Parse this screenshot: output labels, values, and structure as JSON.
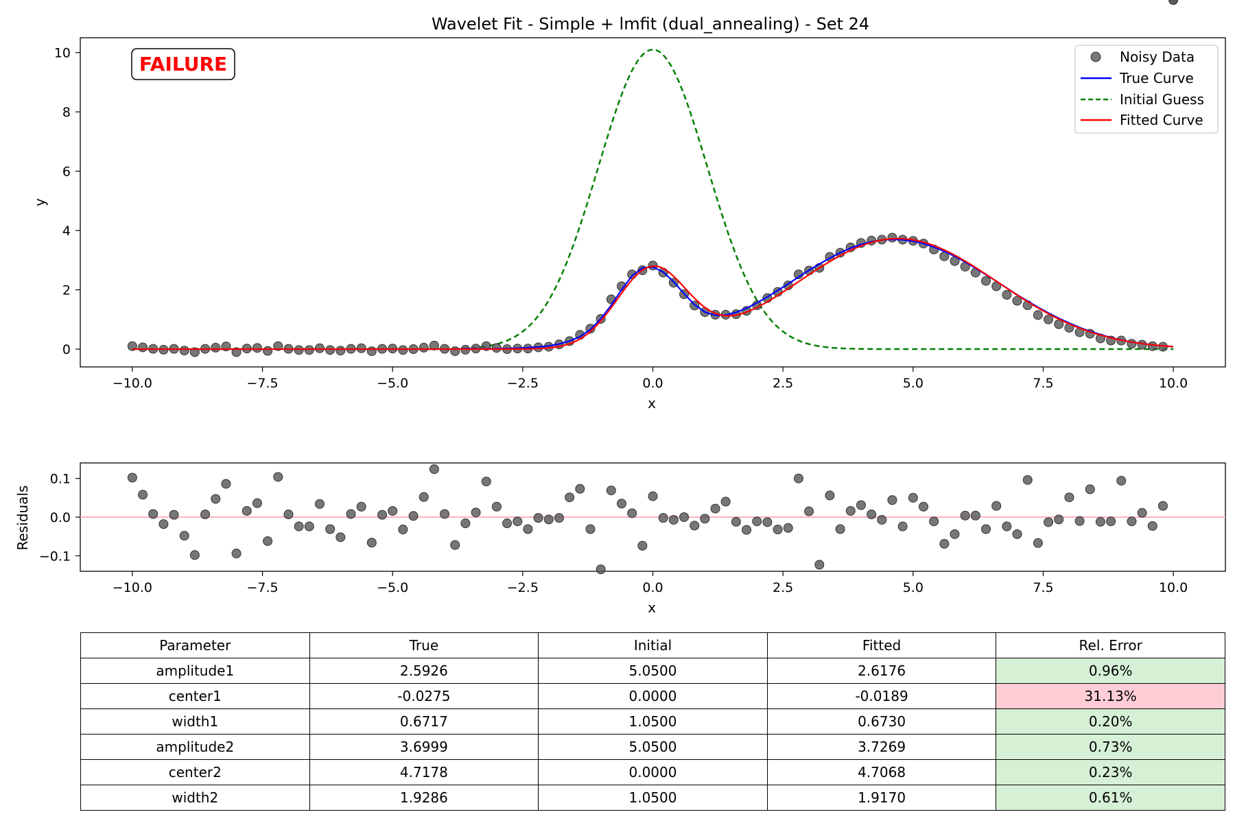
{
  "chart_data": [
    {
      "type": "line",
      "title": "Wavelet Fit - Simple + lmfit (dual_annealing) - Set 24",
      "xlabel": "x",
      "ylabel": "y",
      "xlim": [
        -11,
        11
      ],
      "ylim": [
        -0.6,
        10.5
      ],
      "xticks": [
        -10,
        -7.5,
        -5,
        -2.5,
        0,
        2.5,
        5,
        7.5,
        10
      ],
      "xtick_labels": [
        "−10.0",
        "−7.5",
        "−5.0",
        "−2.5",
        "0.0",
        "2.5",
        "5.0",
        "7.5",
        "10.0"
      ],
      "yticks": [
        0,
        2,
        4,
        6,
        8,
        10
      ],
      "ytick_labels": [
        "0",
        "2",
        "4",
        "6",
        "8",
        "10"
      ],
      "grid": false,
      "legend_position": "top-right",
      "annotation": "FAILURE",
      "series": [
        {
          "name": "Noisy Data",
          "kind": "scatter",
          "color": "#555555"
        },
        {
          "name": "True Curve",
          "kind": "line",
          "color": "#0000ff"
        },
        {
          "name": "Initial Guess",
          "kind": "dashed-line",
          "color": "#008000"
        },
        {
          "name": "Fitted Curve",
          "kind": "line",
          "color": "#ff0000"
        }
      ],
      "x": [
        -10.0,
        -9.8,
        -9.6,
        -9.4,
        -9.2,
        -9.0,
        -8.8,
        -8.6,
        -8.4,
        -8.2,
        -8.0,
        -7.8,
        -7.6,
        -7.4,
        -7.2,
        -7.0,
        -6.8,
        -6.6,
        -6.4,
        -6.2,
        -6.0,
        -5.8,
        -5.6,
        -5.4,
        -5.2,
        -5.0,
        -4.8,
        -4.6,
        -4.4,
        -4.2,
        -4.0,
        -3.8,
        -3.6,
        -3.4,
        -3.2,
        -3.0,
        -2.8,
        -2.6,
        -2.4,
        -2.2,
        -2.0,
        -1.8,
        -1.6,
        -1.4,
        -1.2,
        -1.0,
        -0.8,
        -0.6,
        -0.4,
        -0.2,
        0.0,
        0.2,
        0.4,
        0.6,
        0.8,
        1.0,
        1.2,
        1.4,
        1.6,
        1.8,
        2.0,
        2.2,
        2.4,
        2.6,
        2.8,
        3.0,
        3.2,
        3.4,
        3.6,
        3.8,
        4.0,
        4.2,
        4.4,
        4.6,
        4.8,
        5.0,
        5.2,
        5.4,
        5.6,
        5.8,
        6.0,
        6.2,
        6.4,
        6.6,
        6.8,
        7.0,
        7.2,
        7.4,
        7.6,
        7.8,
        8.0,
        8.2,
        8.4,
        8.6,
        8.8,
        9.0,
        9.2,
        9.4,
        9.6,
        9.8,
        10.0
      ],
      "noisy_y": [
        0.1,
        0.06,
        0.01,
        -0.02,
        0.01,
        -0.05,
        -0.1,
        0.01,
        0.05,
        0.09,
        -0.1,
        0.02,
        0.04,
        -0.06,
        0.1,
        0.01,
        -0.03,
        -0.03,
        0.03,
        -0.03,
        -0.05,
        0.01,
        0.03,
        -0.07,
        0.01,
        0.02,
        -0.03,
        0.0,
        0.05,
        0.12,
        0.01,
        -0.07,
        -0.02,
        0.02,
        0.1,
        0.04,
        0.0,
        0.02,
        0.02,
        0.06,
        0.08,
        0.16,
        0.27,
        0.48,
        0.69,
        1.02,
        1.68,
        2.12,
        2.52,
        2.66,
        2.82,
        2.58,
        2.24,
        1.85,
        1.47,
        1.25,
        1.16,
        1.16,
        1.18,
        1.29,
        1.48,
        1.72,
        1.93,
        2.15,
        2.52,
        2.65,
        2.74,
        3.11,
        3.25,
        3.43,
        3.58,
        3.66,
        3.69,
        3.76,
        3.69,
        3.65,
        3.56,
        3.36,
        3.13,
        2.97,
        2.78,
        2.58,
        2.3,
        2.12,
        1.83,
        1.63,
        1.48,
        1.15,
        1.0,
        0.84,
        0.72,
        0.57,
        0.52,
        0.36,
        0.29,
        0.29,
        0.18,
        0.15,
        0.1,
        0.08
      ],
      "true_y": [
        0.0,
        0.0,
        0.0,
        0.0,
        0.0,
        0.0,
        0.0,
        0.0,
        0.0,
        0.0,
        0.0,
        0.0,
        0.0,
        0.0,
        0.0,
        0.0,
        0.0,
        0.0,
        0.0,
        0.0,
        0.0,
        0.0,
        0.0,
        0.0,
        0.0,
        0.0,
        0.0,
        0.0,
        0.0,
        0.0,
        0.0,
        0.0,
        0.01,
        0.01,
        0.01,
        0.01,
        0.02,
        0.03,
        0.05,
        0.07,
        0.11,
        0.17,
        0.27,
        0.42,
        0.66,
        1.02,
        1.48,
        2.0,
        2.47,
        2.74,
        2.77,
        2.6,
        2.27,
        1.87,
        1.5,
        1.25,
        1.14,
        1.15,
        1.24,
        1.38,
        1.56,
        1.76,
        1.98,
        2.2,
        2.43,
        2.66,
        2.87,
        3.07,
        3.25,
        3.41,
        3.53,
        3.62,
        3.68,
        3.7,
        3.69,
        3.64,
        3.56,
        3.44,
        3.3,
        3.13,
        2.94,
        2.73,
        2.51,
        2.29,
        2.06,
        1.83,
        1.62,
        1.41,
        1.22,
        1.04,
        0.88,
        0.73,
        0.6,
        0.49,
        0.39,
        0.31,
        0.24,
        0.19,
        0.14,
        0.11,
        0.08
      ],
      "initial_amplitude_peak": 10.1
    },
    {
      "type": "scatter",
      "title": "",
      "xlabel": "x",
      "ylabel": "Residuals",
      "xlim": [
        -11,
        11
      ],
      "ylim": [
        -0.14,
        0.14
      ],
      "xticks": [
        -10,
        -7.5,
        -5,
        -2.5,
        0,
        2.5,
        5,
        7.5,
        10
      ],
      "xtick_labels": [
        "−10.0",
        "−7.5",
        "−5.0",
        "−2.5",
        "0.0",
        "2.5",
        "5.0",
        "7.5",
        "10.0"
      ],
      "yticks": [
        -0.1,
        0.0,
        0.1
      ],
      "ytick_labels": [
        "−0.1",
        "0.0",
        "0.1"
      ],
      "grid": false,
      "zero_line_color": "#ffb3ba",
      "x": [
        -10.0,
        -9.8,
        -9.6,
        -9.4,
        -9.2,
        -9.0,
        -8.8,
        -8.6,
        -8.4,
        -8.2,
        -8.0,
        -7.8,
        -7.6,
        -7.4,
        -7.2,
        -7.0,
        -6.8,
        -6.6,
        -6.4,
        -6.2,
        -6.0,
        -5.8,
        -5.6,
        -5.4,
        -5.2,
        -5.0,
        -4.8,
        -4.6,
        -4.4,
        -4.2,
        -4.0,
        -3.8,
        -3.6,
        -3.4,
        -3.2,
        -3.0,
        -2.8,
        -2.6,
        -2.4,
        -2.2,
        -2.0,
        -1.8,
        -1.6,
        -1.4,
        -1.2,
        -1.0,
        -0.8,
        -0.6,
        -0.4,
        -0.2,
        0.0,
        0.2,
        0.4,
        0.6,
        0.8,
        1.0,
        1.2,
        1.4,
        1.6,
        1.8,
        2.0,
        2.2,
        2.4,
        2.6,
        2.8,
        3.0,
        3.2,
        3.4,
        3.6,
        3.8,
        4.0,
        4.2,
        4.4,
        4.6,
        4.8,
        5.0,
        5.2,
        5.4,
        5.6,
        5.8,
        6.0,
        6.2,
        6.4,
        6.6,
        6.8,
        7.0,
        7.2,
        7.4,
        7.6,
        7.8,
        8.0,
        8.2,
        8.4,
        8.6,
        8.8,
        9.0,
        9.2,
        9.4,
        9.6,
        9.8,
        10.0
      ],
      "residuals": [
        0.102,
        0.058,
        0.008,
        -0.018,
        0.006,
        -0.048,
        -0.098,
        0.007,
        0.047,
        0.086,
        -0.094,
        0.016,
        0.036,
        -0.062,
        0.104,
        0.007,
        -0.024,
        -0.024,
        0.034,
        -0.031,
        -0.052,
        0.008,
        0.027,
        -0.066,
        0.006,
        0.016,
        -0.032,
        0.003,
        0.052,
        0.124,
        0.008,
        -0.072,
        -0.016,
        0.012,
        0.092,
        0.027,
        -0.016,
        -0.011,
        -0.031,
        -0.002,
        -0.006,
        -0.002,
        0.051,
        0.073,
        -0.031,
        -0.135,
        0.069,
        0.035,
        0.01,
        -0.074,
        0.054,
        -0.002,
        -0.007,
        0.0,
        -0.022,
        -0.004,
        0.022,
        0.04,
        -0.012,
        -0.033,
        -0.011,
        -0.013,
        -0.032,
        -0.028,
        0.1,
        0.015,
        -0.123,
        0.056,
        -0.031,
        0.016,
        0.031,
        0.007,
        -0.007,
        0.044,
        -0.024,
        0.05,
        0.027,
        -0.011,
        -0.069,
        -0.044,
        0.004,
        0.004,
        -0.031,
        0.029,
        -0.024,
        -0.044,
        0.096,
        -0.067,
        -0.013,
        -0.006,
        0.051,
        -0.01,
        0.072,
        -0.012,
        -0.011,
        0.094,
        -0.011,
        0.011,
        -0.023,
        0.029
      ]
    }
  ],
  "table": {
    "headers": [
      "Parameter",
      "True",
      "Initial",
      "Fitted",
      "Rel. Error"
    ],
    "rows": [
      {
        "name": "amplitude1",
        "true": "2.5926",
        "initial": "5.0500",
        "fitted": "2.6176",
        "error": "0.96%",
        "ok": true
      },
      {
        "name": "center1",
        "true": "-0.0275",
        "initial": "0.0000",
        "fitted": "-0.0189",
        "error": "31.13%",
        "ok": false
      },
      {
        "name": "width1",
        "true": "0.6717",
        "initial": "1.0500",
        "fitted": "0.6730",
        "error": "0.20%",
        "ok": true
      },
      {
        "name": "amplitude2",
        "true": "3.6999",
        "initial": "5.0500",
        "fitted": "3.7269",
        "error": "0.73%",
        "ok": true
      },
      {
        "name": "center2",
        "true": "4.7178",
        "initial": "0.0000",
        "fitted": "4.7068",
        "error": "0.23%",
        "ok": true
      },
      {
        "name": "width2",
        "true": "1.9286",
        "initial": "1.0500",
        "fitted": "1.9170",
        "error": "0.61%",
        "ok": true
      }
    ]
  }
}
